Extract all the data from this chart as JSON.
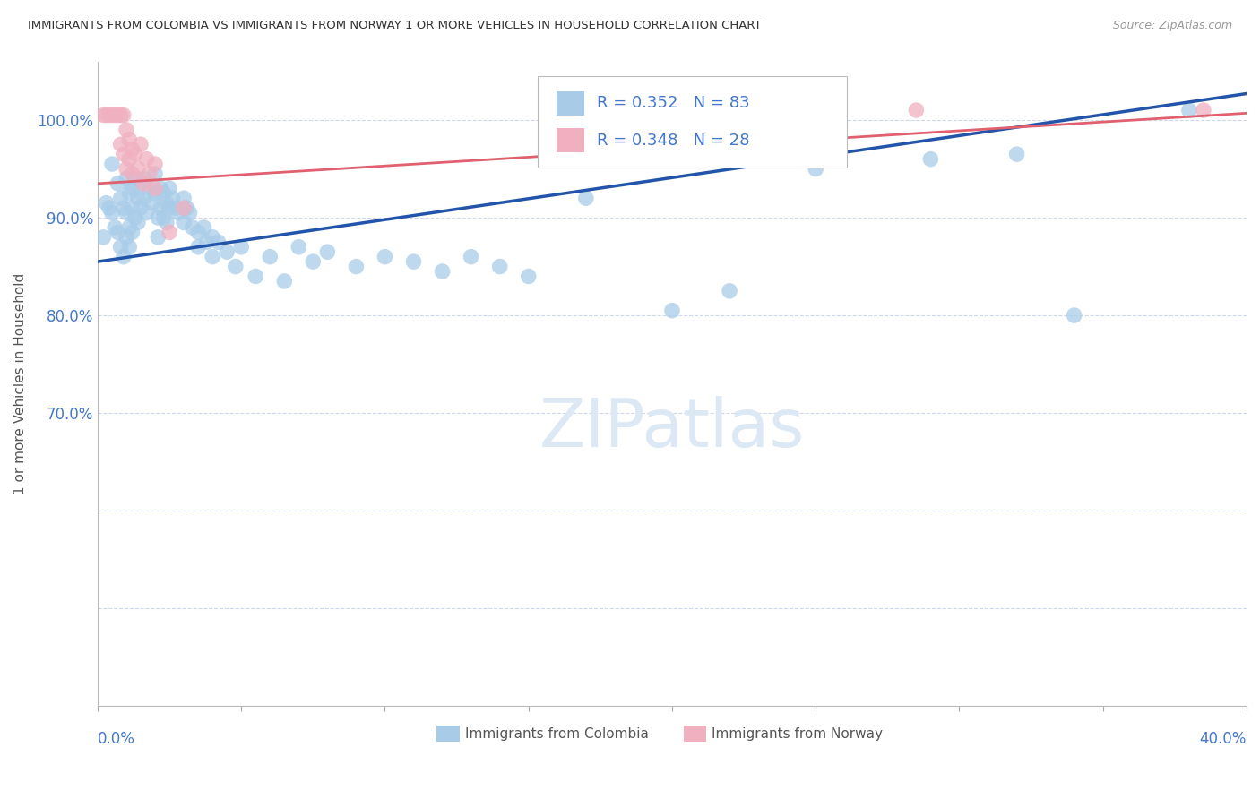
{
  "title": "IMMIGRANTS FROM COLOMBIA VS IMMIGRANTS FROM NORWAY 1 OR MORE VEHICLES IN HOUSEHOLD CORRELATION CHART",
  "source": "Source: ZipAtlas.com",
  "ylabel": "1 or more Vehicles in Household",
  "legend_label_colombia": "Immigrants from Colombia",
  "legend_label_norway": "Immigrants from Norway",
  "xlim": [
    0.0,
    40.0
  ],
  "ylim": [
    40.0,
    106.0
  ],
  "colombia_color": "#a8cce8",
  "norway_color": "#f0b0c0",
  "colombia_line_color": "#2255aa",
  "norway_line_color": "#e06070",
  "R_colombia": 0.352,
  "N_colombia": 83,
  "R_norway": 0.348,
  "N_norway": 28,
  "background_color": "#ffffff",
  "grid_color": "#c8d4e8",
  "title_color": "#333333",
  "axis_color": "#4477cc",
  "source_color": "#999999",
  "watermark_color": "#dce8f4",
  "colombia_line_intercept": 85.5,
  "colombia_line_slope": 0.43,
  "norway_line_intercept": 93.5,
  "norway_line_slope": 0.18,
  "colombia_points": [
    [
      0.2,
      88.0
    ],
    [
      0.3,
      91.5
    ],
    [
      0.4,
      91.0
    ],
    [
      0.5,
      95.5
    ],
    [
      0.5,
      90.5
    ],
    [
      0.6,
      89.0
    ],
    [
      0.7,
      93.5
    ],
    [
      0.7,
      88.5
    ],
    [
      0.8,
      92.0
    ],
    [
      0.8,
      87.0
    ],
    [
      0.9,
      91.0
    ],
    [
      0.9,
      86.0
    ],
    [
      1.0,
      94.0
    ],
    [
      1.0,
      90.5
    ],
    [
      1.0,
      88.0
    ],
    [
      1.1,
      92.5
    ],
    [
      1.1,
      89.0
    ],
    [
      1.1,
      87.0
    ],
    [
      1.2,
      93.0
    ],
    [
      1.2,
      91.0
    ],
    [
      1.2,
      88.5
    ],
    [
      1.3,
      94.0
    ],
    [
      1.3,
      90.0
    ],
    [
      1.4,
      92.0
    ],
    [
      1.4,
      89.5
    ],
    [
      1.5,
      93.5
    ],
    [
      1.5,
      91.0
    ],
    [
      1.6,
      94.0
    ],
    [
      1.6,
      92.0
    ],
    [
      1.7,
      90.5
    ],
    [
      1.8,
      93.0
    ],
    [
      1.9,
      91.5
    ],
    [
      2.0,
      94.5
    ],
    [
      2.0,
      92.5
    ],
    [
      2.1,
      90.0
    ],
    [
      2.1,
      88.0
    ],
    [
      2.2,
      93.0
    ],
    [
      2.2,
      91.0
    ],
    [
      2.3,
      92.5
    ],
    [
      2.3,
      90.0
    ],
    [
      2.4,
      91.5
    ],
    [
      2.4,
      89.5
    ],
    [
      2.5,
      93.0
    ],
    [
      2.5,
      91.0
    ],
    [
      2.6,
      92.0
    ],
    [
      2.7,
      91.0
    ],
    [
      2.8,
      90.5
    ],
    [
      3.0,
      92.0
    ],
    [
      3.0,
      89.5
    ],
    [
      3.1,
      91.0
    ],
    [
      3.2,
      90.5
    ],
    [
      3.3,
      89.0
    ],
    [
      3.5,
      88.5
    ],
    [
      3.5,
      87.0
    ],
    [
      3.7,
      89.0
    ],
    [
      3.8,
      87.5
    ],
    [
      4.0,
      88.0
    ],
    [
      4.0,
      86.0
    ],
    [
      4.2,
      87.5
    ],
    [
      4.5,
      86.5
    ],
    [
      4.8,
      85.0
    ],
    [
      5.0,
      87.0
    ],
    [
      5.5,
      84.0
    ],
    [
      6.0,
      86.0
    ],
    [
      6.5,
      83.5
    ],
    [
      7.0,
      87.0
    ],
    [
      7.5,
      85.5
    ],
    [
      8.0,
      86.5
    ],
    [
      9.0,
      85.0
    ],
    [
      10.0,
      86.0
    ],
    [
      11.0,
      85.5
    ],
    [
      12.0,
      84.5
    ],
    [
      13.0,
      86.0
    ],
    [
      14.0,
      85.0
    ],
    [
      15.0,
      84.0
    ],
    [
      17.0,
      92.0
    ],
    [
      20.0,
      80.5
    ],
    [
      22.0,
      82.5
    ],
    [
      25.0,
      95.0
    ],
    [
      29.0,
      96.0
    ],
    [
      32.0,
      96.5
    ],
    [
      34.0,
      80.0
    ],
    [
      38.0,
      101.0
    ]
  ],
  "norway_points": [
    [
      0.2,
      100.5
    ],
    [
      0.3,
      100.5
    ],
    [
      0.4,
      100.5
    ],
    [
      0.5,
      100.5
    ],
    [
      0.6,
      100.5
    ],
    [
      0.7,
      100.5
    ],
    [
      0.8,
      100.5
    ],
    [
      0.8,
      97.5
    ],
    [
      0.9,
      100.5
    ],
    [
      0.9,
      96.5
    ],
    [
      1.0,
      99.0
    ],
    [
      1.0,
      95.0
    ],
    [
      1.1,
      98.0
    ],
    [
      1.1,
      96.0
    ],
    [
      1.2,
      97.0
    ],
    [
      1.2,
      94.5
    ],
    [
      1.3,
      96.5
    ],
    [
      1.4,
      95.0
    ],
    [
      1.5,
      97.5
    ],
    [
      1.6,
      93.5
    ],
    [
      1.7,
      96.0
    ],
    [
      1.8,
      94.5
    ],
    [
      2.0,
      95.5
    ],
    [
      2.0,
      93.0
    ],
    [
      2.5,
      88.5
    ],
    [
      3.0,
      91.0
    ],
    [
      28.5,
      101.0
    ],
    [
      38.5,
      101.0
    ]
  ]
}
